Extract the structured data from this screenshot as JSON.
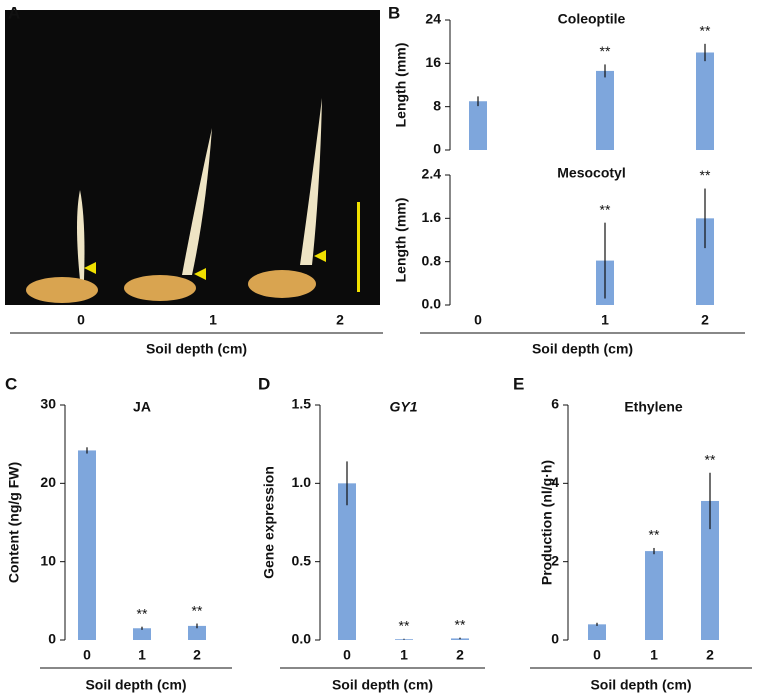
{
  "chart_data": [
    {
      "type": "image",
      "panel": "A",
      "categories": [
        "0",
        "1",
        "2"
      ],
      "xlabel": "Soil depth (cm)"
    },
    {
      "type": "bar",
      "panel": "B",
      "title": "Coleoptile",
      "ylabel": "Length (mm)",
      "color": "#7ea6dc",
      "categories": [
        "0",
        "1",
        "2"
      ],
      "values": [
        9.0,
        14.6,
        18.0
      ],
      "errors": [
        0.9,
        1.2,
        1.6
      ],
      "annotations": [
        null,
        "**",
        "**"
      ],
      "ylim": [
        0,
        24
      ],
      "yticks": [
        0,
        8,
        16,
        24
      ]
    },
    {
      "type": "bar",
      "title": "Mesocotyl",
      "ylabel": "Length (mm)",
      "xlabel": "Soil depth (cm)",
      "color": "#7ea6dc",
      "categories": [
        "0",
        "1",
        "2"
      ],
      "values": [
        0,
        0.82,
        1.6
      ],
      "errors": [
        0,
        0.7,
        0.55
      ],
      "annotations": [
        null,
        "**",
        "**"
      ],
      "ylim": [
        0,
        2.4
      ],
      "yticks": [
        {
          "value": 0,
          "label": "0.0"
        },
        0.8,
        1.6,
        2.4
      ]
    },
    {
      "type": "bar",
      "panel": "C",
      "title": "JA",
      "ylabel": "Content (ng/g FW)",
      "xlabel": "Soil depth (cm)",
      "color": "#7ea6dc",
      "categories": [
        "0",
        "1",
        "2"
      ],
      "values": [
        24.2,
        1.5,
        1.8
      ],
      "errors": [
        0.4,
        0.2,
        0.3
      ],
      "annotations": [
        null,
        "**",
        "**"
      ],
      "ylim": [
        0,
        30
      ],
      "yticks": [
        0,
        10,
        20,
        30
      ]
    },
    {
      "type": "bar",
      "panel": "D",
      "title": "GY1",
      "ylabel": "Gene expression",
      "xlabel": "Soil depth (cm)",
      "color": "#7ea6dc",
      "categories": [
        "0",
        "1",
        "2"
      ],
      "values": [
        1.0,
        0.005,
        0.01
      ],
      "errors": [
        0.14,
        0.003,
        0.005
      ],
      "annotations": [
        null,
        "**",
        "**"
      ],
      "ylim": [
        0,
        1.5
      ],
      "yticks": [
        {
          "value": 0,
          "label": "0.0"
        },
        0.5,
        {
          "value": 1,
          "label": "1.0"
        },
        1.5
      ]
    },
    {
      "type": "bar",
      "panel": "E",
      "title": "Ethylene",
      "ylabel": "Production (nl/g·h)",
      "xlabel": "Soil depth (cm)",
      "color": "#7ea6dc",
      "categories": [
        "0",
        "1",
        "2"
      ],
      "values": [
        0.4,
        2.27,
        3.55
      ],
      "errors": [
        0.04,
        0.08,
        0.72
      ],
      "annotations": [
        null,
        "**",
        "**"
      ],
      "ylim": [
        0,
        6
      ],
      "yticks": [
        0,
        2,
        4,
        6
      ]
    }
  ]
}
